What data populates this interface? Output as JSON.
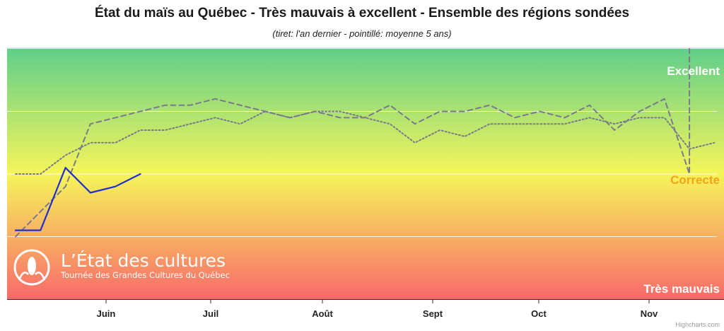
{
  "title": "État du maïs au Québec - Très mauvais à excellent - Ensemble des régions sondées",
  "subtitle": "(tiret: l'an dernier - pointillé: moyenne 5 ans)",
  "credits": "Highcharts.com",
  "logo": {
    "title": "L’État des cultures",
    "subtitle": "Tournée des Grandes Cultures du Québec"
  },
  "colors": {
    "current": "#1f2ed1",
    "last_year": "#7a7a8a",
    "avg5": "#7a7a8a",
    "top": "#5fcf8a",
    "middle": "#f6f55a",
    "bottom": "#f86a6a"
  },
  "chart_data": {
    "type": "line",
    "title": "État du maïs au Québec - Très mauvais à excellent - Ensemble des régions sondées",
    "subtitle": "(tiret: l'an dernier - pointillé: moyenne 5 ans)",
    "x_tick_labels": [
      "Juin",
      "Juil",
      "Août",
      "Sept",
      "Oct",
      "Nov"
    ],
    "y_band_labels": [
      "Excellent",
      "Correcte",
      "Très mauvais"
    ],
    "grid": true,
    "series": [
      {
        "style": "solid",
        "values": [
          {
            "x": 0.0,
            "y": 2.1
          },
          {
            "x": 1.0,
            "y": 2.1
          },
          {
            "x": 2.0,
            "y": 3.1
          },
          {
            "x": 3.0,
            "y": 2.7
          },
          {
            "x": 4.0,
            "y": 2.8
          },
          {
            "x": 5.0,
            "y": 3.0
          }
        ]
      },
      {
        "style": "dashed",
        "values": [
          {
            "x": 0.0,
            "y": 2.0
          },
          {
            "x": 2.0,
            "y": 2.8
          },
          {
            "x": 3.0,
            "y": 3.8
          },
          {
            "x": 4.0,
            "y": 3.9
          },
          {
            "x": 5.0,
            "y": 4.0
          },
          {
            "x": 6.0,
            "y": 4.1
          },
          {
            "x": 7.0,
            "y": 4.1
          },
          {
            "x": 8.0,
            "y": 4.2
          },
          {
            "x": 9.0,
            "y": 4.1
          },
          {
            "x": 10.0,
            "y": 4.0
          },
          {
            "x": 11.0,
            "y": 3.9
          },
          {
            "x": 12.0,
            "y": 4.0
          },
          {
            "x": 13.0,
            "y": 3.9
          },
          {
            "x": 14.0,
            "y": 3.9
          },
          {
            "x": 15.0,
            "y": 4.1
          },
          {
            "x": 16.0,
            "y": 3.8
          },
          {
            "x": 17.0,
            "y": 4.0
          },
          {
            "x": 18.0,
            "y": 4.0
          },
          {
            "x": 19.0,
            "y": 4.1
          },
          {
            "x": 20.0,
            "y": 3.9
          },
          {
            "x": 21.0,
            "y": 4.0
          },
          {
            "x": 22.0,
            "y": 3.9
          },
          {
            "x": 23.0,
            "y": 4.1
          },
          {
            "x": 24.0,
            "y": 3.7
          },
          {
            "x": 25.0,
            "y": 4.0
          },
          {
            "x": 26.0,
            "y": 4.2
          },
          {
            "x": 27.0,
            "y": 3.0
          },
          {
            "x": 27.0,
            "y": 5.0
          }
        ]
      },
      {
        "style": "dotted",
        "values": [
          {
            "x": 0.0,
            "y": 3.0
          },
          {
            "x": 1.0,
            "y": 3.0
          },
          {
            "x": 2.0,
            "y": 3.3
          },
          {
            "x": 3.0,
            "y": 3.5
          },
          {
            "x": 4.0,
            "y": 3.5
          },
          {
            "x": 5.0,
            "y": 3.7
          },
          {
            "x": 6.0,
            "y": 3.7
          },
          {
            "x": 7.0,
            "y": 3.8
          },
          {
            "x": 8.0,
            "y": 3.9
          },
          {
            "x": 9.0,
            "y": 3.8
          },
          {
            "x": 10.0,
            "y": 4.0
          },
          {
            "x": 11.0,
            "y": 3.9
          },
          {
            "x": 12.0,
            "y": 4.0
          },
          {
            "x": 13.0,
            "y": 4.0
          },
          {
            "x": 14.0,
            "y": 3.9
          },
          {
            "x": 15.0,
            "y": 3.8
          },
          {
            "x": 16.0,
            "y": 3.5
          },
          {
            "x": 17.0,
            "y": 3.7
          },
          {
            "x": 18.0,
            "y": 3.6
          },
          {
            "x": 19.0,
            "y": 3.8
          },
          {
            "x": 20.0,
            "y": 3.8
          },
          {
            "x": 21.0,
            "y": 3.8
          },
          {
            "x": 22.0,
            "y": 3.8
          },
          {
            "x": 23.0,
            "y": 3.9
          },
          {
            "x": 24.0,
            "y": 3.8
          },
          {
            "x": 25.0,
            "y": 3.9
          },
          {
            "x": 26.0,
            "y": 3.9
          },
          {
            "x": 27.0,
            "y": 3.4
          },
          {
            "x": 28.0,
            "y": 3.5
          }
        ]
      }
    ]
  }
}
